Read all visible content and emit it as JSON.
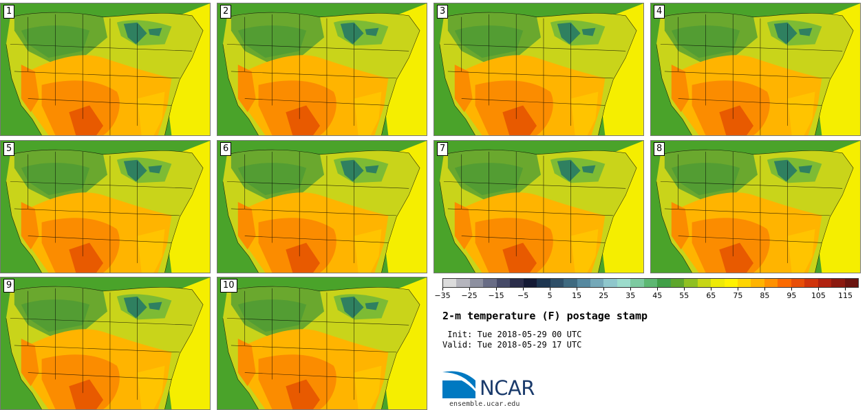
{
  "panels": [
    {
      "label": "1"
    },
    {
      "label": "2"
    },
    {
      "label": "3"
    },
    {
      "label": "4"
    },
    {
      "label": "5"
    },
    {
      "label": "6"
    },
    {
      "label": "7"
    },
    {
      "label": "8"
    },
    {
      "label": "9"
    },
    {
      "label": "10"
    }
  ],
  "colorbar": {
    "colors": [
      "#dcdcdc",
      "#b5b5bd",
      "#8d90a0",
      "#686c85",
      "#464a68",
      "#2b2d4a",
      "#141a35",
      "#1d3550",
      "#2f4f68",
      "#3f6a80",
      "#5689a0",
      "#74a8b8",
      "#8fc7cc",
      "#9cdccc",
      "#7ccaa0",
      "#5db872",
      "#41a048",
      "#5da62c",
      "#8fc022",
      "#c7d616",
      "#eeea06",
      "#fff200",
      "#ffd500",
      "#ffb400",
      "#ff9100",
      "#fb6a00",
      "#e84e08",
      "#d0340c",
      "#b02210",
      "#8c1a10",
      "#6a1410"
    ],
    "tick_labels": [
      "−35",
      "−25",
      "−15",
      "−5",
      "5",
      "15",
      "25",
      "35",
      "45",
      "55",
      "65",
      "75",
      "85",
      "95",
      "105",
      "115"
    ],
    "range": [
      -35,
      120
    ]
  },
  "title": "2-m temperature (F) postage stamp",
  "init_line": " Init: Tue 2018-05-29 00 UTC",
  "valid_line": "Valid: Tue 2018-05-29 17 UTC",
  "logo": {
    "name": "NCAR",
    "url": "ensemble.ucar.edu",
    "color": "#1a3a6b",
    "accent": "#0079c1"
  },
  "map_colors": {
    "ocean_atlantic": "#f5ee00",
    "ocean_pacific": "#4aa32a",
    "north": "#6aa82e",
    "plains": "#ffb400",
    "south": "#fb8c00",
    "lakes": "#2f8060"
  }
}
